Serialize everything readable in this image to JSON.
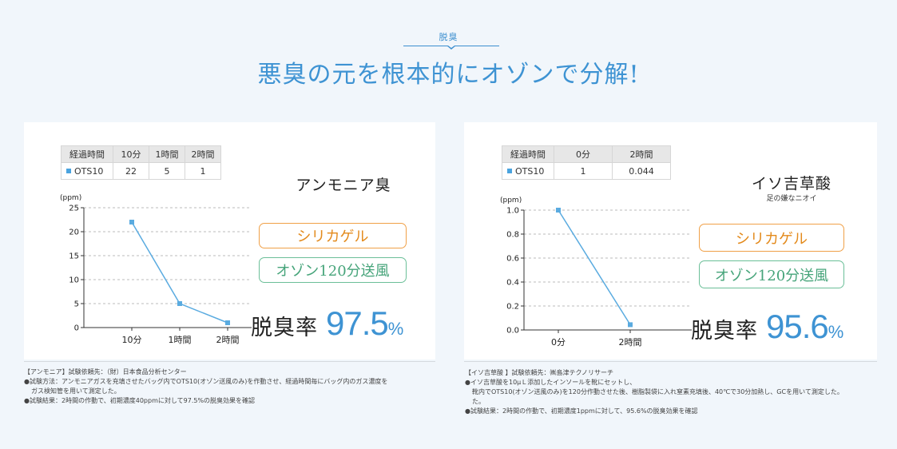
{
  "header": {
    "eyebrow": "脱臭",
    "headline": "悪臭の元を根本的にオゾンで分解!"
  },
  "panels": [
    {
      "table": {
        "headers": [
          "経過時間",
          "10分",
          "1時間",
          "2時間"
        ],
        "row_label": "OTS10",
        "values": [
          "22",
          "5",
          "1"
        ]
      },
      "smell": "アンモニア臭",
      "smell_sub": "",
      "methods": [
        "シリカゲル",
        "オゾン120分送風"
      ],
      "rate_label": "脱臭率",
      "rate_value": "97.5",
      "rate_unit": "%",
      "notes": [
        "【アンモニア】試験依頼先：（財）日本食品分析センター",
        "●試験方法：アンモニアガスを充填させたバッグ内でOTS10(オゾン送風のみ)を作動させ、経過時間毎にバッグ内のガス濃度を",
        "ガス検知管を用いて測定した。",
        "●試験結果：2時間の作動で、初期濃度40ppmに対して97.5%の脱臭効果を確認"
      ]
    },
    {
      "table": {
        "headers": [
          "経過時間",
          "0分",
          "2時間"
        ],
        "row_label": "OTS10",
        "values": [
          "1",
          "0.044"
        ]
      },
      "smell": "イソ吉草酸",
      "smell_sub": "足の嫌なニオイ",
      "methods": [
        "シリカゲル",
        "オゾン120分送風"
      ],
      "rate_label": "脱臭率",
      "rate_value": "95.6",
      "rate_unit": "%",
      "notes": [
        "【イソ吉草酸 】試験依頼先：㈱島津テクノリサーチ",
        "●イソ吉草酸を10μＬ添加したインソールを靴にセットし、",
        "靴内でOTS10(オゾン送風のみ)を120分作動させた後、樹脂製袋に入れ窒素充填後、40℃で30分加熱し、GCを用いて測定した。",
        "た。",
        "●試験結果：2時間の作動で、初期濃度1ppmに対して、95.6%の脱臭効果を確認"
      ]
    }
  ],
  "chart_data": [
    {
      "type": "line",
      "x": [
        "10分",
        "1時間",
        "2時間"
      ],
      "series": [
        {
          "name": "OTS10",
          "values": [
            22,
            5,
            1
          ]
        }
      ],
      "ylabel": "(ppm)",
      "ylim": [
        0,
        25
      ],
      "yticks": [
        "0",
        "5",
        "10",
        "15",
        "20",
        "25"
      ],
      "grid": true,
      "color": "#5aabe0"
    },
    {
      "type": "line",
      "x": [
        "0分",
        "2時間"
      ],
      "series": [
        {
          "name": "OTS10",
          "values": [
            1,
            0.044
          ]
        }
      ],
      "ylabel": "(ppm)",
      "ylim": [
        0,
        1
      ],
      "yticks": [
        "0.0",
        "0.2",
        "0.4",
        "0.6",
        "0.8",
        "1.0"
      ],
      "grid": true,
      "color": "#5aabe0"
    }
  ]
}
